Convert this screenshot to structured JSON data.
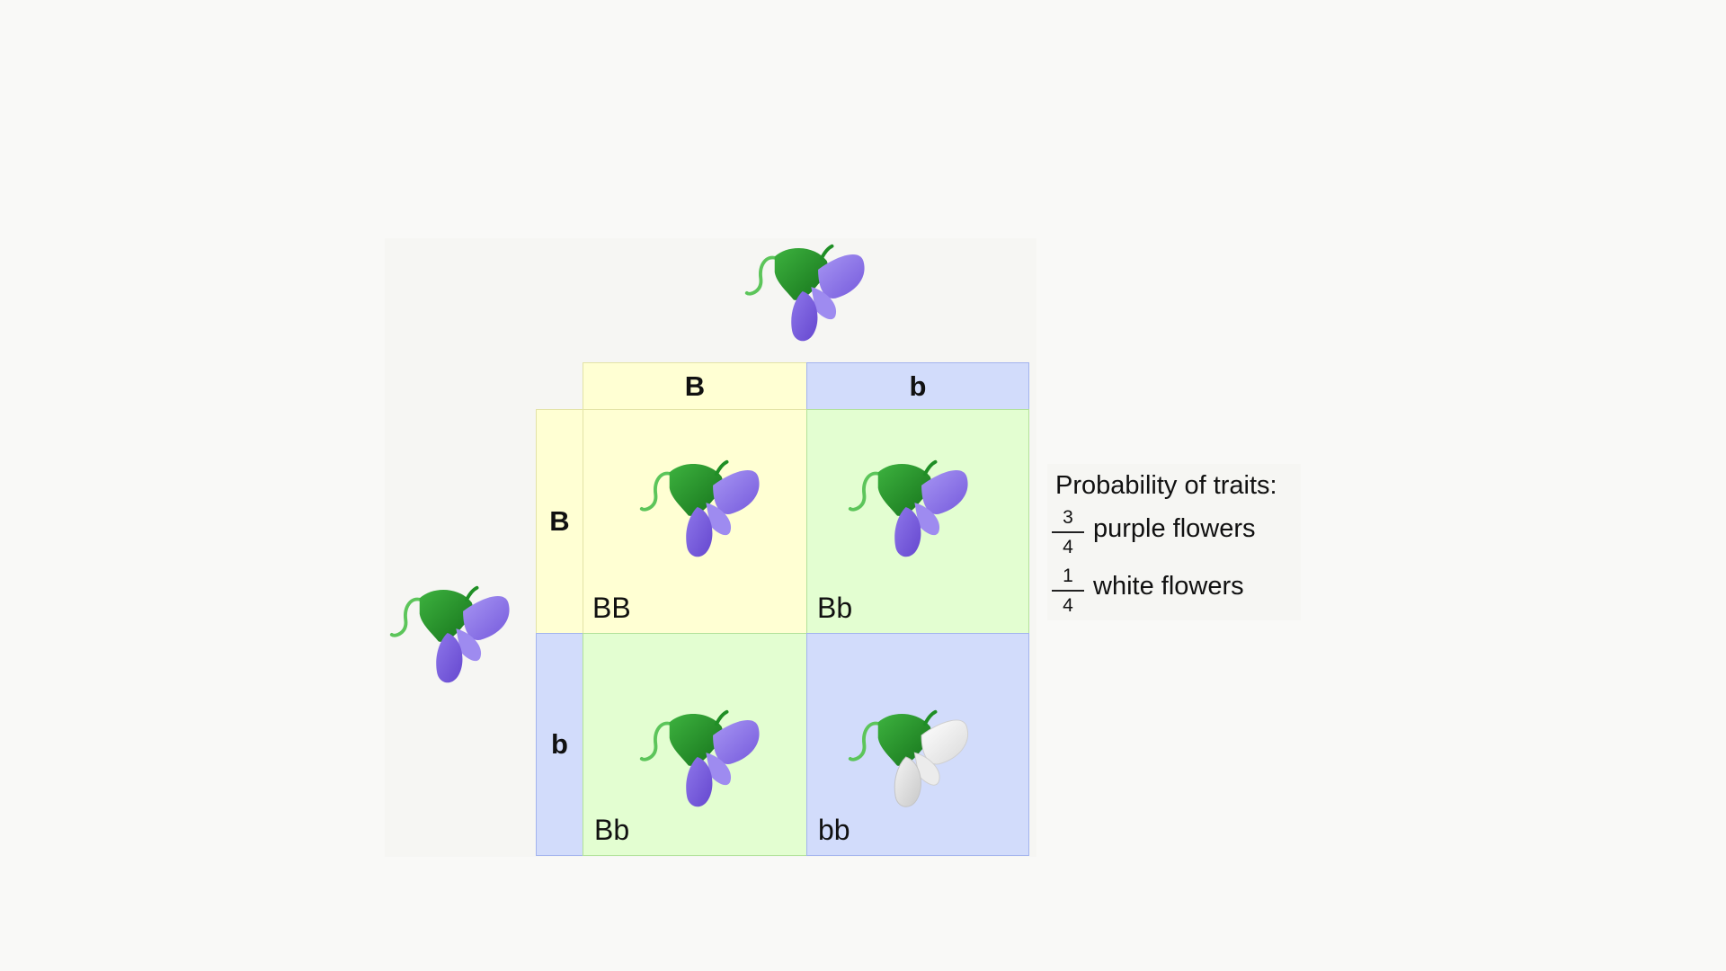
{
  "punnett_square": {
    "top_alleles": [
      "B",
      "b"
    ],
    "side_alleles": [
      "B",
      "b"
    ],
    "cells": [
      {
        "genotype": "BB",
        "flower_color": "purple"
      },
      {
        "genotype": "Bb",
        "flower_color": "purple"
      },
      {
        "genotype": "Bb",
        "flower_color": "purple"
      },
      {
        "genotype": "bb",
        "flower_color": "white"
      }
    ]
  },
  "legend": {
    "title": "Probability of traits:",
    "rows": [
      {
        "numerator": "3",
        "denominator": "4",
        "label": "purple flowers"
      },
      {
        "numerator": "1",
        "denominator": "4",
        "label": "white flowers"
      }
    ]
  },
  "colors": {
    "yellow_cell": "#ffffd3",
    "blue_cell": "#d2dcfb",
    "green_cell": "#e3fed1",
    "petal_purple": "#8f79e6",
    "petal_white": "#f2f2f2",
    "sepal_green": "#1f8f25"
  },
  "icons": {
    "parent_flower": "purple-flower-icon",
    "offspring_purple": "purple-flower-icon",
    "offspring_white": "white-flower-icon"
  }
}
